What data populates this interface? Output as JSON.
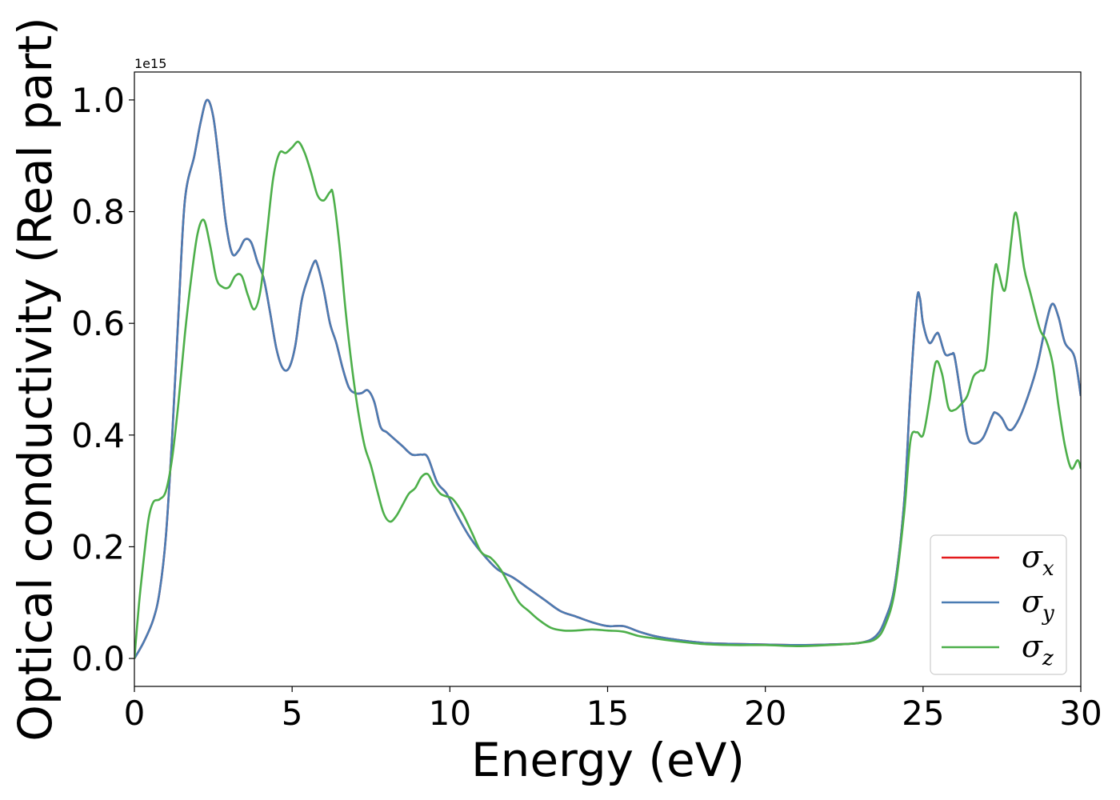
{
  "chart_data": {
    "type": "line",
    "title": "",
    "xlabel": "Energy (eV)",
    "ylabel": "Optical conductivity (Real part)",
    "offset_text": "1e15",
    "xlim": [
      0,
      30
    ],
    "ylim": [
      -0.05,
      1.05
    ],
    "x_ticks": [
      0,
      5,
      10,
      15,
      20,
      25,
      30
    ],
    "x_tick_labels": [
      "0",
      "5",
      "10",
      "15",
      "20",
      "25",
      "30"
    ],
    "y_ticks": [
      0.0,
      0.2,
      0.4,
      0.6,
      0.8,
      1.0
    ],
    "y_tick_labels": [
      "0.0",
      "0.2",
      "0.4",
      "0.6",
      "0.8",
      "1.0"
    ],
    "grid": false,
    "legend_position": "lower-right",
    "series": [
      {
        "name": "σ_x",
        "symbol": "σ",
        "subscript": "x",
        "color": "#e31a1c",
        "points": [
          [
            0,
            0
          ],
          [
            0.3,
            0.03
          ],
          [
            0.6,
            0.07
          ],
          [
            0.8,
            0.12
          ],
          [
            1.0,
            0.22
          ],
          [
            1.2,
            0.4
          ],
          [
            1.4,
            0.62
          ],
          [
            1.6,
            0.82
          ],
          [
            1.9,
            0.9
          ],
          [
            2.1,
            0.96
          ],
          [
            2.3,
            1.0
          ],
          [
            2.5,
            0.97
          ],
          [
            2.7,
            0.88
          ],
          [
            2.9,
            0.78
          ],
          [
            3.1,
            0.725
          ],
          [
            3.3,
            0.73
          ],
          [
            3.5,
            0.75
          ],
          [
            3.7,
            0.745
          ],
          [
            3.9,
            0.71
          ],
          [
            4.1,
            0.68
          ],
          [
            4.3,
            0.62
          ],
          [
            4.5,
            0.555
          ],
          [
            4.7,
            0.52
          ],
          [
            4.9,
            0.52
          ],
          [
            5.1,
            0.56
          ],
          [
            5.3,
            0.64
          ],
          [
            5.5,
            0.68
          ],
          [
            5.7,
            0.71
          ],
          [
            5.8,
            0.705
          ],
          [
            6.0,
            0.66
          ],
          [
            6.2,
            0.6
          ],
          [
            6.4,
            0.565
          ],
          [
            6.6,
            0.52
          ],
          [
            6.8,
            0.485
          ],
          [
            7.0,
            0.475
          ],
          [
            7.2,
            0.475
          ],
          [
            7.4,
            0.48
          ],
          [
            7.6,
            0.46
          ],
          [
            7.8,
            0.415
          ],
          [
            8.0,
            0.405
          ],
          [
            8.2,
            0.395
          ],
          [
            8.5,
            0.38
          ],
          [
            8.8,
            0.365
          ],
          [
            9.1,
            0.365
          ],
          [
            9.3,
            0.36
          ],
          [
            9.6,
            0.315
          ],
          [
            9.9,
            0.295
          ],
          [
            10.2,
            0.26
          ],
          [
            10.6,
            0.22
          ],
          [
            11.0,
            0.19
          ],
          [
            11.5,
            0.16
          ],
          [
            12.0,
            0.145
          ],
          [
            12.5,
            0.125
          ],
          [
            13.0,
            0.105
          ],
          [
            13.5,
            0.085
          ],
          [
            14.0,
            0.075
          ],
          [
            14.5,
            0.065
          ],
          [
            15.0,
            0.058
          ],
          [
            15.5,
            0.058
          ],
          [
            16.0,
            0.048
          ],
          [
            16.5,
            0.04
          ],
          [
            17.0,
            0.035
          ],
          [
            18.0,
            0.028
          ],
          [
            19.0,
            0.026
          ],
          [
            20.0,
            0.025
          ],
          [
            21.0,
            0.024
          ],
          [
            22.0,
            0.025
          ],
          [
            23.0,
            0.028
          ],
          [
            23.5,
            0.04
          ],
          [
            23.8,
            0.07
          ],
          [
            24.1,
            0.13
          ],
          [
            24.4,
            0.28
          ],
          [
            24.6,
            0.48
          ],
          [
            24.8,
            0.64
          ],
          [
            24.9,
            0.645
          ],
          [
            25.0,
            0.6
          ],
          [
            25.2,
            0.565
          ],
          [
            25.4,
            0.58
          ],
          [
            25.5,
            0.58
          ],
          [
            25.7,
            0.545
          ],
          [
            25.9,
            0.545
          ],
          [
            26.0,
            0.54
          ],
          [
            26.2,
            0.47
          ],
          [
            26.4,
            0.4
          ],
          [
            26.6,
            0.385
          ],
          [
            26.9,
            0.395
          ],
          [
            27.2,
            0.435
          ],
          [
            27.3,
            0.44
          ],
          [
            27.5,
            0.43
          ],
          [
            27.7,
            0.41
          ],
          [
            27.9,
            0.415
          ],
          [
            28.2,
            0.45
          ],
          [
            28.6,
            0.52
          ],
          [
            28.9,
            0.6
          ],
          [
            29.1,
            0.635
          ],
          [
            29.3,
            0.61
          ],
          [
            29.5,
            0.565
          ],
          [
            29.8,
            0.54
          ],
          [
            30.0,
            0.47
          ]
        ]
      },
      {
        "name": "σ_y",
        "symbol": "σ",
        "subscript": "y",
        "color": "#4a7cb3",
        "points": [
          [
            0,
            0
          ],
          [
            0.3,
            0.03
          ],
          [
            0.6,
            0.07
          ],
          [
            0.8,
            0.12
          ],
          [
            1.0,
            0.22
          ],
          [
            1.2,
            0.4
          ],
          [
            1.4,
            0.62
          ],
          [
            1.6,
            0.82
          ],
          [
            1.9,
            0.9
          ],
          [
            2.1,
            0.96
          ],
          [
            2.3,
            1.0
          ],
          [
            2.5,
            0.97
          ],
          [
            2.7,
            0.88
          ],
          [
            2.9,
            0.78
          ],
          [
            3.1,
            0.725
          ],
          [
            3.3,
            0.73
          ],
          [
            3.5,
            0.75
          ],
          [
            3.7,
            0.745
          ],
          [
            3.9,
            0.71
          ],
          [
            4.1,
            0.68
          ],
          [
            4.3,
            0.62
          ],
          [
            4.5,
            0.555
          ],
          [
            4.7,
            0.52
          ],
          [
            4.9,
            0.52
          ],
          [
            5.1,
            0.56
          ],
          [
            5.3,
            0.64
          ],
          [
            5.5,
            0.68
          ],
          [
            5.7,
            0.71
          ],
          [
            5.8,
            0.705
          ],
          [
            6.0,
            0.66
          ],
          [
            6.2,
            0.6
          ],
          [
            6.4,
            0.565
          ],
          [
            6.6,
            0.52
          ],
          [
            6.8,
            0.485
          ],
          [
            7.0,
            0.475
          ],
          [
            7.2,
            0.475
          ],
          [
            7.4,
            0.48
          ],
          [
            7.6,
            0.46
          ],
          [
            7.8,
            0.415
          ],
          [
            8.0,
            0.405
          ],
          [
            8.2,
            0.395
          ],
          [
            8.5,
            0.38
          ],
          [
            8.8,
            0.365
          ],
          [
            9.1,
            0.365
          ],
          [
            9.3,
            0.36
          ],
          [
            9.6,
            0.315
          ],
          [
            9.9,
            0.295
          ],
          [
            10.2,
            0.26
          ],
          [
            10.6,
            0.22
          ],
          [
            11.0,
            0.19
          ],
          [
            11.5,
            0.16
          ],
          [
            12.0,
            0.145
          ],
          [
            12.5,
            0.125
          ],
          [
            13.0,
            0.105
          ],
          [
            13.5,
            0.085
          ],
          [
            14.0,
            0.075
          ],
          [
            14.5,
            0.065
          ],
          [
            15.0,
            0.058
          ],
          [
            15.5,
            0.058
          ],
          [
            16.0,
            0.048
          ],
          [
            16.5,
            0.04
          ],
          [
            17.0,
            0.035
          ],
          [
            18.0,
            0.028
          ],
          [
            19.0,
            0.026
          ],
          [
            20.0,
            0.025
          ],
          [
            21.0,
            0.024
          ],
          [
            22.0,
            0.025
          ],
          [
            23.0,
            0.028
          ],
          [
            23.5,
            0.04
          ],
          [
            23.8,
            0.07
          ],
          [
            24.1,
            0.13
          ],
          [
            24.4,
            0.28
          ],
          [
            24.6,
            0.48
          ],
          [
            24.8,
            0.64
          ],
          [
            24.9,
            0.645
          ],
          [
            25.0,
            0.6
          ],
          [
            25.2,
            0.565
          ],
          [
            25.4,
            0.58
          ],
          [
            25.5,
            0.58
          ],
          [
            25.7,
            0.545
          ],
          [
            25.9,
            0.545
          ],
          [
            26.0,
            0.54
          ],
          [
            26.2,
            0.47
          ],
          [
            26.4,
            0.4
          ],
          [
            26.6,
            0.385
          ],
          [
            26.9,
            0.395
          ],
          [
            27.2,
            0.435
          ],
          [
            27.3,
            0.44
          ],
          [
            27.5,
            0.43
          ],
          [
            27.7,
            0.41
          ],
          [
            27.9,
            0.415
          ],
          [
            28.2,
            0.45
          ],
          [
            28.6,
            0.52
          ],
          [
            28.9,
            0.6
          ],
          [
            29.1,
            0.635
          ],
          [
            29.3,
            0.61
          ],
          [
            29.5,
            0.565
          ],
          [
            29.8,
            0.54
          ],
          [
            30.0,
            0.47
          ]
        ]
      },
      {
        "name": "σ_z",
        "symbol": "σ",
        "subscript": "z",
        "color": "#4daf4a",
        "points": [
          [
            0,
            0
          ],
          [
            0.15,
            0.1
          ],
          [
            0.3,
            0.18
          ],
          [
            0.45,
            0.25
          ],
          [
            0.6,
            0.28
          ],
          [
            0.8,
            0.285
          ],
          [
            1.0,
            0.3
          ],
          [
            1.2,
            0.36
          ],
          [
            1.4,
            0.46
          ],
          [
            1.6,
            0.58
          ],
          [
            1.8,
            0.68
          ],
          [
            2.0,
            0.76
          ],
          [
            2.2,
            0.785
          ],
          [
            2.4,
            0.74
          ],
          [
            2.6,
            0.68
          ],
          [
            2.8,
            0.665
          ],
          [
            3.0,
            0.665
          ],
          [
            3.2,
            0.685
          ],
          [
            3.4,
            0.685
          ],
          [
            3.6,
            0.65
          ],
          [
            3.8,
            0.625
          ],
          [
            4.0,
            0.66
          ],
          [
            4.2,
            0.76
          ],
          [
            4.4,
            0.86
          ],
          [
            4.6,
            0.905
          ],
          [
            4.8,
            0.905
          ],
          [
            5.0,
            0.915
          ],
          [
            5.2,
            0.925
          ],
          [
            5.4,
            0.905
          ],
          [
            5.6,
            0.87
          ],
          [
            5.8,
            0.83
          ],
          [
            6.0,
            0.82
          ],
          [
            6.2,
            0.835
          ],
          [
            6.3,
            0.83
          ],
          [
            6.5,
            0.74
          ],
          [
            6.7,
            0.62
          ],
          [
            6.9,
            0.52
          ],
          [
            7.1,
            0.44
          ],
          [
            7.3,
            0.38
          ],
          [
            7.5,
            0.345
          ],
          [
            7.7,
            0.3
          ],
          [
            7.9,
            0.26
          ],
          [
            8.1,
            0.245
          ],
          [
            8.3,
            0.255
          ],
          [
            8.5,
            0.275
          ],
          [
            8.7,
            0.295
          ],
          [
            8.9,
            0.305
          ],
          [
            9.1,
            0.325
          ],
          [
            9.3,
            0.33
          ],
          [
            9.5,
            0.31
          ],
          [
            9.7,
            0.295
          ],
          [
            9.9,
            0.29
          ],
          [
            10.1,
            0.285
          ],
          [
            10.4,
            0.26
          ],
          [
            10.7,
            0.225
          ],
          [
            11.0,
            0.19
          ],
          [
            11.3,
            0.18
          ],
          [
            11.6,
            0.16
          ],
          [
            11.9,
            0.13
          ],
          [
            12.2,
            0.1
          ],
          [
            12.5,
            0.085
          ],
          [
            12.8,
            0.07
          ],
          [
            13.2,
            0.055
          ],
          [
            13.6,
            0.05
          ],
          [
            14.0,
            0.05
          ],
          [
            14.5,
            0.052
          ],
          [
            15.0,
            0.05
          ],
          [
            15.5,
            0.048
          ],
          [
            16.0,
            0.04
          ],
          [
            16.5,
            0.036
          ],
          [
            17.0,
            0.032
          ],
          [
            18.0,
            0.026
          ],
          [
            19.0,
            0.024
          ],
          [
            20.0,
            0.024
          ],
          [
            21.0,
            0.022
          ],
          [
            22.0,
            0.024
          ],
          [
            23.0,
            0.028
          ],
          [
            23.5,
            0.035
          ],
          [
            23.8,
            0.06
          ],
          [
            24.1,
            0.12
          ],
          [
            24.4,
            0.26
          ],
          [
            24.6,
            0.39
          ],
          [
            24.8,
            0.405
          ],
          [
            25.0,
            0.4
          ],
          [
            25.2,
            0.46
          ],
          [
            25.4,
            0.53
          ],
          [
            25.6,
            0.51
          ],
          [
            25.8,
            0.45
          ],
          [
            26.0,
            0.445
          ],
          [
            26.2,
            0.455
          ],
          [
            26.4,
            0.47
          ],
          [
            26.6,
            0.505
          ],
          [
            26.8,
            0.515
          ],
          [
            27.0,
            0.53
          ],
          [
            27.2,
            0.66
          ],
          [
            27.3,
            0.705
          ],
          [
            27.4,
            0.69
          ],
          [
            27.6,
            0.66
          ],
          [
            27.8,
            0.75
          ],
          [
            27.9,
            0.795
          ],
          [
            28.0,
            0.785
          ],
          [
            28.2,
            0.7
          ],
          [
            28.4,
            0.655
          ],
          [
            28.7,
            0.59
          ],
          [
            28.9,
            0.57
          ],
          [
            29.1,
            0.53
          ],
          [
            29.3,
            0.45
          ],
          [
            29.5,
            0.38
          ],
          [
            29.7,
            0.34
          ],
          [
            29.9,
            0.355
          ],
          [
            30.0,
            0.34
          ]
        ]
      }
    ]
  }
}
